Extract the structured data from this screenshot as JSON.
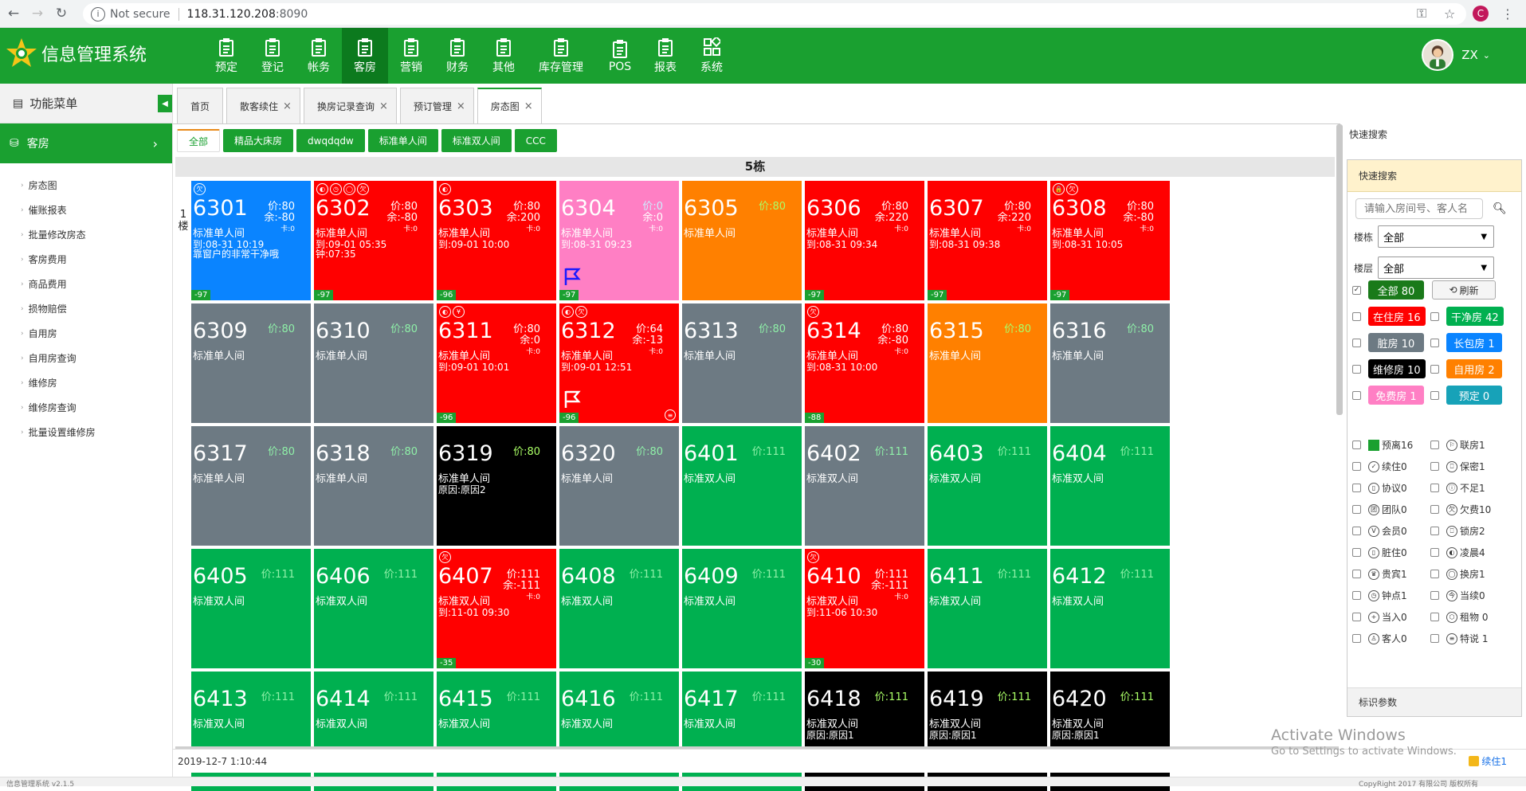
{
  "browser": {
    "not_secure": "Not secure",
    "host": "118.31.120.208",
    "port": ":8090",
    "profile": "C"
  },
  "app": {
    "title": "信息管理系统",
    "user": "ZX"
  },
  "nav": [
    {
      "label": "预定"
    },
    {
      "label": "登记"
    },
    {
      "label": "帐务"
    },
    {
      "label": "客房"
    },
    {
      "label": "营销"
    },
    {
      "label": "财务"
    },
    {
      "label": "其他"
    },
    {
      "label": "库存管理"
    },
    {
      "label": "POS"
    },
    {
      "label": "报表"
    },
    {
      "label": "系统"
    }
  ],
  "sidebar": {
    "header": "功能菜单",
    "category": "客房",
    "items": [
      "房态图",
      "催账报表",
      "批量修改房态",
      "客房费用",
      "商品费用",
      "损物赔偿",
      "自用房",
      "自用房查询",
      "维修房",
      "维修房查询",
      "批量设置维修房"
    ]
  },
  "tabs": [
    {
      "label": "首页"
    },
    {
      "label": "散客续住"
    },
    {
      "label": "换房记录查询"
    },
    {
      "label": "预订管理"
    },
    {
      "label": "房态图"
    }
  ],
  "room_type_filters": [
    "全部",
    "精品大床房",
    "dwqdqdw",
    "标准单人间",
    "标准双人间",
    "CCC"
  ],
  "building": "5栋",
  "floor": "1楼",
  "rooms": [
    {
      "num": "6301",
      "status": "blue",
      "price": "价:80",
      "balance": "余:-80",
      "card": "卡:0",
      "type": "标准单人间",
      "l1": "到:08-31 10:19",
      "l2": "靠窗户的非常干净哦",
      "badge": "-97",
      "icons": [
        "欠"
      ]
    },
    {
      "num": "6302",
      "status": "red",
      "price": "价:80",
      "balance": "余:-80",
      "card": "卡:0",
      "type": "标准单人间",
      "l1": "到:09-01 05:35",
      "l2": "钟:07:35",
      "badge": "-97",
      "icons": [
        "◐",
        "◷",
        "◯",
        "欠"
      ]
    },
    {
      "num": "6303",
      "status": "red",
      "price": "价:80",
      "balance": "余:200",
      "card": "卡:0",
      "type": "标准单人间",
      "l1": "到:09-01 10:00",
      "l2": "",
      "badge": "-96",
      "icons": [
        "◐"
      ]
    },
    {
      "num": "6304",
      "status": "pink",
      "price": "价:0",
      "balance": "余:0",
      "card": "卡:0",
      "type": "标准单人间",
      "l1": "到:08-31 09:23",
      "l2": "",
      "badge": "-97",
      "icons": [],
      "flag": "blue"
    },
    {
      "num": "6305",
      "status": "orange",
      "price": "价:80",
      "type": "标准单人间"
    },
    {
      "num": "6306",
      "status": "red",
      "price": "价:80",
      "balance": "余:220",
      "card": "卡:0",
      "type": "标准单人间",
      "l1": "到:08-31 09:34",
      "l2": "",
      "badge": "-97",
      "icons": []
    },
    {
      "num": "6307",
      "status": "red",
      "price": "价:80",
      "balance": "余:220",
      "card": "卡:0",
      "type": "标准单人间",
      "l1": "到:08-31 09:38",
      "l2": "",
      "badge": "-97",
      "icons": []
    },
    {
      "num": "6308",
      "status": "red",
      "price": "价:80",
      "balance": "余:-80",
      "card": "卡:0",
      "type": "标准单人间",
      "l1": "到:08-31 10:05",
      "l2": "",
      "badge": "-97",
      "icons": [
        "🔒",
        "欠"
      ]
    },
    {
      "num": "6309",
      "status": "gray",
      "price": "价:80",
      "type": "标准单人间"
    },
    {
      "num": "6310",
      "status": "gray",
      "price": "价:80",
      "type": "标准单人间"
    },
    {
      "num": "6311",
      "status": "red",
      "price": "价:80",
      "balance": "余:0",
      "card": "卡:0",
      "type": "标准单人间",
      "l1": "到:09-01 10:01",
      "l2": "",
      "badge": "-96",
      "icons": [
        "◐",
        "¥"
      ]
    },
    {
      "num": "6312",
      "status": "red",
      "price": "价:64",
      "balance": "余:-13",
      "card": "卡:0",
      "type": "标准单人间",
      "l1": "到:09-01 12:51",
      "l2": "",
      "badge": "-96",
      "icons": [
        "◐",
        "欠"
      ],
      "flag": "white",
      "memo": true
    },
    {
      "num": "6313",
      "status": "gray",
      "price": "价:80",
      "type": "标准单人间"
    },
    {
      "num": "6314",
      "status": "red",
      "price": "价:80",
      "balance": "余:-80",
      "card": "卡:0",
      "type": "标准单人间",
      "l1": "到:08-31 10:00",
      "l2": "",
      "badge": "-88",
      "icons": [
        "欠"
      ]
    },
    {
      "num": "6315",
      "status": "orange",
      "price": "价:80",
      "type": "标准单人间"
    },
    {
      "num": "6316",
      "status": "gray",
      "price": "价:80",
      "type": "标准单人间"
    },
    {
      "num": "6317",
      "status": "gray",
      "price": "价:80",
      "type": "标准单人间"
    },
    {
      "num": "6318",
      "status": "gray",
      "price": "价:80",
      "type": "标准单人间"
    },
    {
      "num": "6319",
      "status": "black",
      "price": "价:80",
      "type": "标准单人间",
      "l1": "原因:原因2"
    },
    {
      "num": "6320",
      "status": "gray",
      "price": "价:80",
      "type": "标准单人间"
    },
    {
      "num": "6401",
      "status": "green",
      "price": "价:111",
      "type": "标准双人间"
    },
    {
      "num": "6402",
      "status": "gray",
      "price": "价:111",
      "type": "标准双人间"
    },
    {
      "num": "6403",
      "status": "green",
      "price": "价:111",
      "type": "标准双人间"
    },
    {
      "num": "6404",
      "status": "green",
      "price": "价:111",
      "type": "标准双人间"
    },
    {
      "num": "6405",
      "status": "green",
      "price": "价:111",
      "type": "标准双人间"
    },
    {
      "num": "6406",
      "status": "green",
      "price": "价:111",
      "type": "标准双人间"
    },
    {
      "num": "6407",
      "status": "red",
      "price": "价:111",
      "balance": "余:-111",
      "card": "卡:0",
      "type": "标准双人间",
      "l1": "到:11-01 09:30",
      "l2": "",
      "badge": "-35",
      "icons": [
        "欠"
      ]
    },
    {
      "num": "6408",
      "status": "green",
      "price": "价:111",
      "type": "标准双人间"
    },
    {
      "num": "6409",
      "status": "green",
      "price": "价:111",
      "type": "标准双人间"
    },
    {
      "num": "6410",
      "status": "red",
      "price": "价:111",
      "balance": "余:-111",
      "card": "卡:0",
      "type": "标准双人间",
      "l1": "到:11-06 10:30",
      "l2": "",
      "badge": "-30",
      "icons": [
        "欠"
      ]
    },
    {
      "num": "6411",
      "status": "green",
      "price": "价:111",
      "type": "标准双人间"
    },
    {
      "num": "6412",
      "status": "green",
      "price": "价:111",
      "type": "标准双人间"
    },
    {
      "num": "6413",
      "status": "green",
      "price": "价:111",
      "type": "标准双人间"
    },
    {
      "num": "6414",
      "status": "green",
      "price": "价:111",
      "type": "标准双人间"
    },
    {
      "num": "6415",
      "status": "green",
      "price": "价:111",
      "type": "标准双人间"
    },
    {
      "num": "6416",
      "status": "green",
      "price": "价:111",
      "type": "标准双人间"
    },
    {
      "num": "6417",
      "status": "green",
      "price": "价:111",
      "type": "标准双人间"
    },
    {
      "num": "6418",
      "status": "black",
      "price": "价:111",
      "type": "标准双人间",
      "l1": "原因:原因1"
    },
    {
      "num": "6419",
      "status": "black",
      "price": "价:111",
      "type": "标准双人间",
      "l1": "原因:原因1"
    },
    {
      "num": "6420",
      "status": "black",
      "price": "价:111",
      "type": "标准双人间",
      "l1": "原因:原因1"
    }
  ],
  "status_colors": {
    "blue": "#0a84ff",
    "red": "#ff0000",
    "pink": "#ff7fc4",
    "orange": "#ff8000",
    "gray": "#6d7a83",
    "black": "#000000",
    "green": "#00b050"
  },
  "right_panel": {
    "title": "快速搜索",
    "box_title": "快速搜索",
    "search_placeholder": "请输入房间号、客人名",
    "building_label": "楼栋",
    "building_value": "全部",
    "floor_label": "楼层",
    "floor_value": "全部",
    "all_button": "全部 80",
    "refresh": "刷新",
    "status_buttons": [
      {
        "label": "在住房 16",
        "color": "#ff0000"
      },
      {
        "label": "干净房 42",
        "color": "#00b050"
      },
      {
        "label": "脏房 10",
        "color": "#6d7a83"
      },
      {
        "label": "长包房 1",
        "color": "#0a84ff"
      },
      {
        "label": "维修房 10",
        "color": "#000000"
      },
      {
        "label": "自用房 2",
        "color": "#ff8000"
      },
      {
        "label": "免费房 1",
        "color": "#ff7fc4"
      },
      {
        "label": "预定 0",
        "color": "#17a2b8"
      }
    ],
    "markers": [
      [
        "预离16",
        "联房1"
      ],
      [
        "续住0",
        "保密1"
      ],
      [
        "协议0",
        "不足1"
      ],
      [
        "团队0",
        "欠费10"
      ],
      [
        "会员0",
        "锁房2"
      ],
      [
        "脏住0",
        "凌晨4"
      ],
      [
        "贵宾1",
        "换房1"
      ],
      [
        "钟点1",
        "当续0"
      ],
      [
        "当入0",
        "租物 0"
      ],
      [
        "客人0",
        "特说 1"
      ]
    ],
    "footer": "标识参数"
  },
  "status": {
    "datetime": "2019-12-7 1:10:44",
    "continue": "续住1"
  },
  "watermark": {
    "line1": "Activate Windows",
    "line2": "Go to Settings to activate Windows."
  },
  "bottom": {
    "app": "信息管理系统 v2.1.5",
    "copy": "CopyRight 2017  有限公司 版权所有"
  }
}
